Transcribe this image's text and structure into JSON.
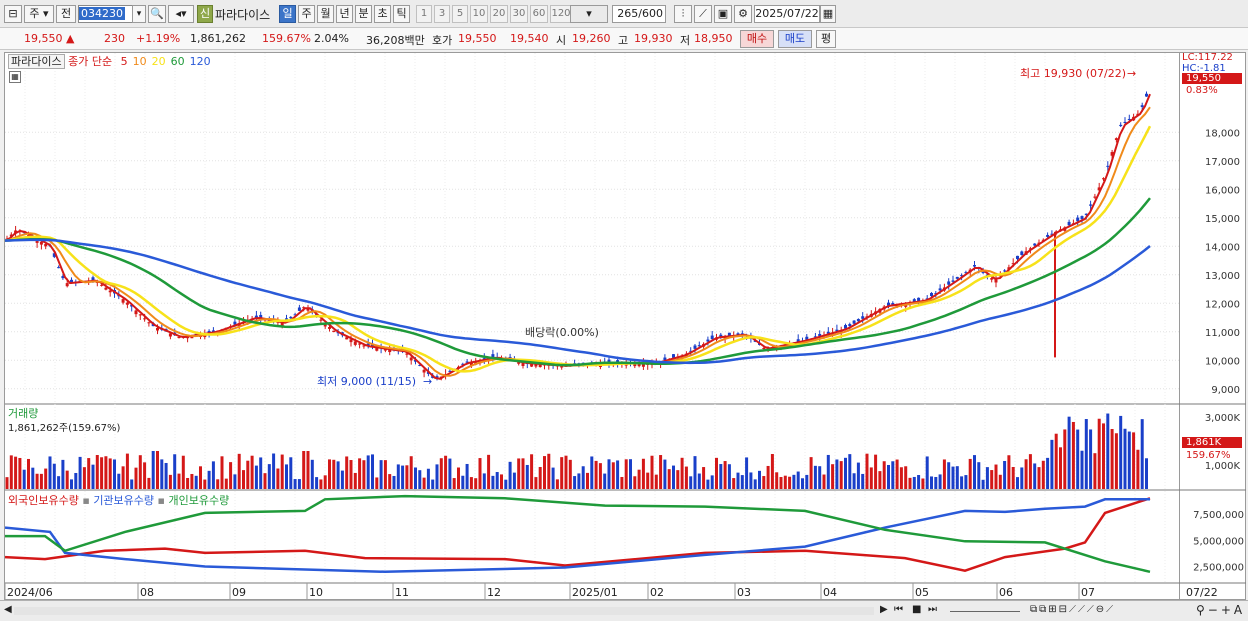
{
  "toolbar": {
    "period": "주",
    "prev": "전",
    "code": "034230",
    "sin": "신",
    "name": "파라다이스",
    "periods": [
      "일",
      "주",
      "월",
      "년",
      "분",
      "초",
      "틱"
    ],
    "nums": [
      "1",
      "3",
      "5",
      "10",
      "20",
      "30",
      "60",
      "120"
    ],
    "count": "265",
    "count_total": "/600",
    "date": "2025/07/22"
  },
  "quote": {
    "price": "19,550",
    "change": "230",
    "pct": "+1.19%",
    "volume": "1,861,262",
    "vol_pct": "159.67%",
    "turnover_pct": "2.04%",
    "amount": "36,208백만",
    "hoga_label": "호가",
    "ask": "19,550",
    "bid": "19,540",
    "open_label": "시",
    "open": "19,260",
    "high_label": "고",
    "high": "19,930",
    "low_label": "저",
    "low": "18,950",
    "buy": "매수",
    "sell": "매도",
    "eval": "평"
  },
  "price_panel": {
    "name": "파라다이스",
    "ma_label": "종가 단순",
    "ma_periods": [
      "5",
      "10",
      "20",
      "60",
      "120"
    ],
    "ma_colors": [
      "#d41818",
      "#f08a1a",
      "#f7e21a",
      "#1f9a3a",
      "#2a5ad8"
    ],
    "high_note": "최고 19,930 (07/22)",
    "low_note": "최저 9,000 (11/15)",
    "dividend_note": "배당락(0.00%)",
    "lc": "LC:117.22",
    "hc": "HC:-1.81",
    "last_price": "19,550",
    "last_pct": "0.83%",
    "y_ticks": [
      "18,000",
      "17,000",
      "16,000",
      "15,000",
      "14,000",
      "13,000",
      "12,000",
      "11,000",
      "10,000",
      "9,000"
    ]
  },
  "volume_panel": {
    "title": "거래량",
    "value": "1,861,262주(159.67%)",
    "y_ticks": [
      "3,000K",
      "1,000K"
    ],
    "last": "1,861K",
    "last_pct": "159.67%"
  },
  "holding_panel": {
    "series": [
      "외국인보유수량",
      "기관보유수량",
      "개인보유수량"
    ],
    "y_ticks": [
      "7,500,000",
      "5,000,000",
      "2,500,000"
    ]
  },
  "x_axis": [
    "2024/06",
    "08",
    "09",
    "10",
    "11",
    "12",
    "2025/01",
    "02",
    "03",
    "04",
    "05",
    "06",
    "07",
    "07/22"
  ],
  "chart_data": {
    "type": "line",
    "price_series": [
      {
        "name": "5",
        "color": "#d41818"
      },
      {
        "name": "10",
        "color": "#f08a1a"
      },
      {
        "name": "20",
        "color": "#f7e21a"
      },
      {
        "name": "60",
        "color": "#1f9a3a"
      },
      {
        "name": "120",
        "color": "#2a5ad8"
      }
    ],
    "ylim": [
      8500,
      20500
    ],
    "holding_series": [
      {
        "name": "외국인보유수량",
        "color": "#d41818"
      },
      {
        "name": "기관보유수량",
        "color": "#2a5ad8"
      },
      {
        "name": "개인보유수량",
        "color": "#1f9a3a"
      }
    ]
  }
}
